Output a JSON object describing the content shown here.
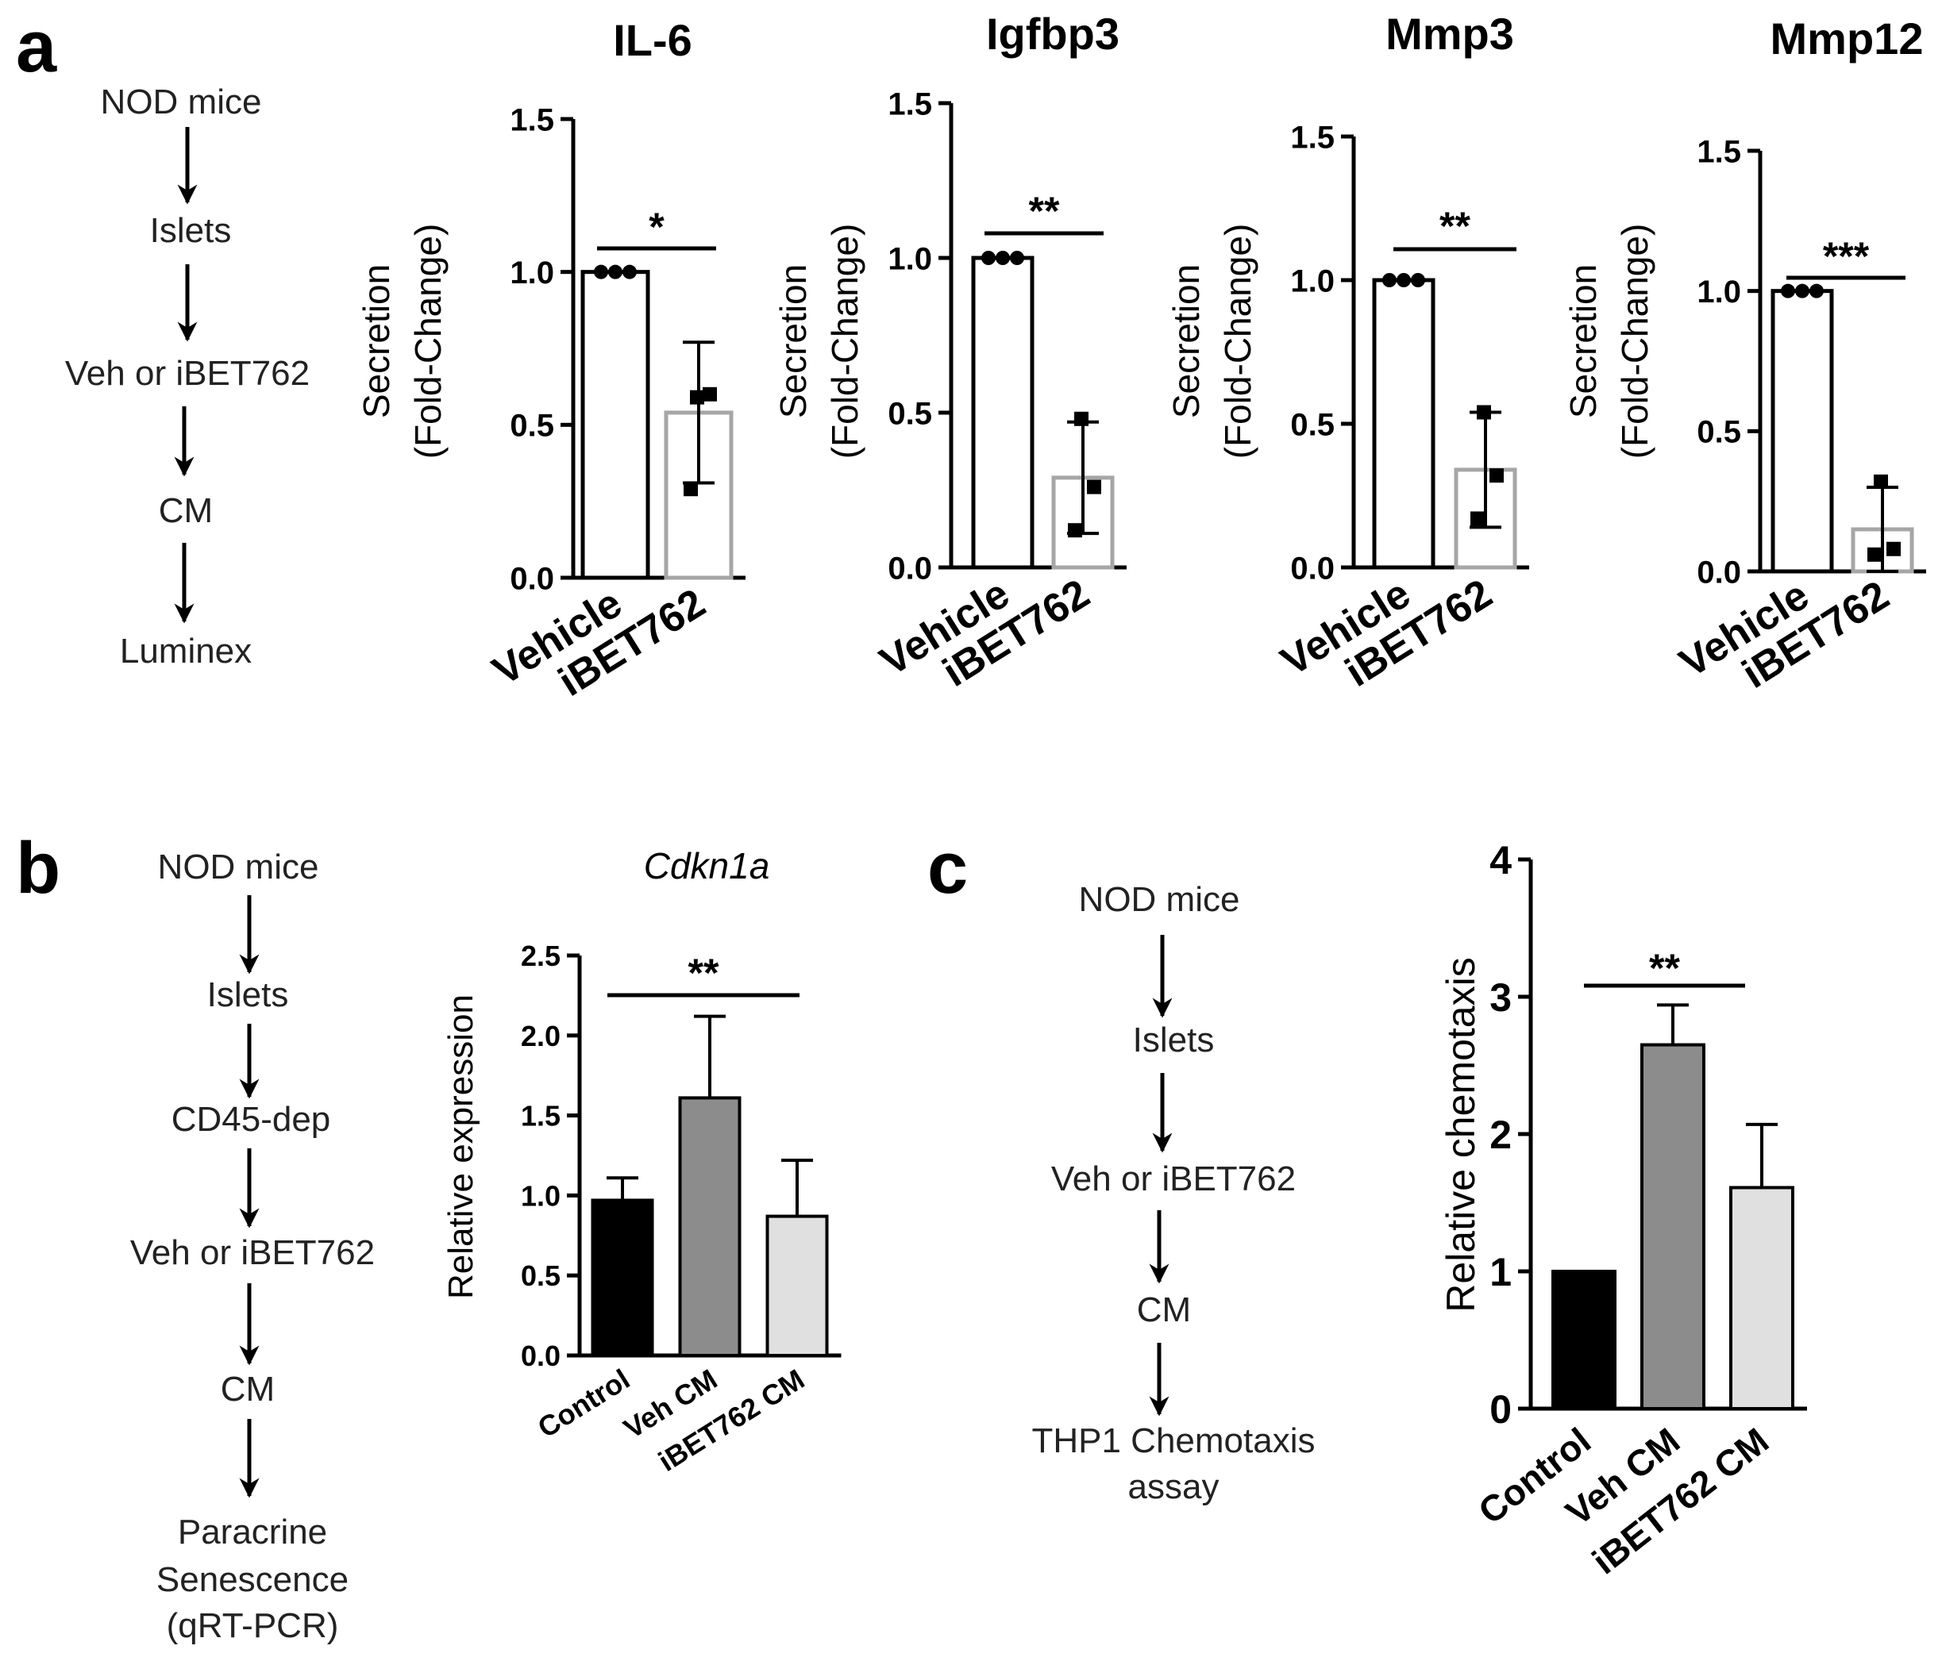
{
  "panels": {
    "a": {
      "letter": "a",
      "flow": [
        "NOD  mice",
        "Islets",
        "Veh or iBET762",
        "CM",
        "Luminex"
      ]
    },
    "b": {
      "letter": "b",
      "flow": [
        "NOD  mice",
        "Islets",
        "CD45-dep",
        "Veh or iBET762",
        "CM",
        "Paracrine",
        "Senescence",
        "(qRT-PCR)"
      ]
    },
    "c": {
      "letter": "c",
      "flow": [
        "NOD  mice",
        "Islets",
        "Veh or iBET762",
        "CM",
        "THP1 Chemotaxis",
        "assay"
      ]
    }
  },
  "chart_data": [
    {
      "panel": "a",
      "type": "bar",
      "title": "IL-6",
      "ylabel": [
        "Secretion",
        "(Fold-Change)"
      ],
      "categories": [
        "Vehicle",
        "iBET762"
      ],
      "values": [
        1.0,
        0.54
      ],
      "error": [
        null,
        0.23
      ],
      "points": [
        [
          1.0,
          1.0,
          1.0
        ],
        [
          0.59,
          0.6,
          0.29
        ]
      ],
      "ylim": [
        0,
        1.5
      ],
      "yticks": [
        "0.0",
        "0.5",
        "1.0",
        "1.5"
      ],
      "significance": "*",
      "bar_fill": [
        "#ffffff",
        "#ffffff"
      ],
      "bar_stroke": [
        "#000000",
        "#a6a6a6"
      ]
    },
    {
      "panel": "a",
      "type": "bar",
      "title": "Igfbp3",
      "ylabel": [
        "Secretion",
        "(Fold-Change)"
      ],
      "categories": [
        "Vehicle",
        "iBET762"
      ],
      "values": [
        1.0,
        0.29
      ],
      "error": [
        null,
        0.18
      ],
      "points": [
        [
          1.0,
          1.0,
          1.0
        ],
        [
          0.48,
          0.26,
          0.12
        ]
      ],
      "ylim": [
        0,
        1.5
      ],
      "yticks": [
        "0.0",
        "0.5",
        "1.0",
        "1.5"
      ],
      "significance": "**",
      "bar_fill": [
        "#ffffff",
        "#ffffff"
      ],
      "bar_stroke": [
        "#000000",
        "#a6a6a6"
      ]
    },
    {
      "panel": "a",
      "type": "bar",
      "title": "Mmp3",
      "ylabel": [
        "Secretion",
        "(Fold-Change)"
      ],
      "categories": [
        "Vehicle",
        "iBET762"
      ],
      "values": [
        1.0,
        0.34
      ],
      "error": [
        null,
        0.2
      ],
      "points": [
        [
          1.0,
          1.0,
          1.0
        ],
        [
          0.54,
          0.32,
          0.17
        ]
      ],
      "ylim": [
        0,
        1.5
      ],
      "yticks": [
        "0.0",
        "0.5",
        "1.0",
        "1.5"
      ],
      "significance": "**",
      "bar_fill": [
        "#ffffff",
        "#ffffff"
      ],
      "bar_stroke": [
        "#000000",
        "#a6a6a6"
      ]
    },
    {
      "panel": "a",
      "type": "bar",
      "title": "Mmp12",
      "ylabel": [
        "Secretion",
        "(Fold-Change)"
      ],
      "categories": [
        "Vehicle",
        "iBET762"
      ],
      "values": [
        1.0,
        0.15
      ],
      "error": [
        null,
        0.15
      ],
      "points": [
        [
          1.0,
          1.0,
          1.0
        ],
        [
          0.32,
          0.08,
          0.06
        ]
      ],
      "ylim": [
        0,
        1.5
      ],
      "yticks": [
        "0.0",
        "0.5",
        "1.0",
        "1.5"
      ],
      "significance": "***",
      "bar_fill": [
        "#ffffff",
        "#ffffff"
      ],
      "bar_stroke": [
        "#000000",
        "#a6a6a6"
      ]
    },
    {
      "panel": "b",
      "type": "bar",
      "title": "Cdkn1a",
      "ylabel": [
        "Relative expression"
      ],
      "categories": [
        "Control",
        "Veh CM",
        "iBET762 CM"
      ],
      "values": [
        0.97,
        1.61,
        0.87
      ],
      "error": [
        0.14,
        0.51,
        0.35
      ],
      "ylim": [
        0,
        2.5
      ],
      "yticks": [
        "0.0",
        "0.5",
        "1.0",
        "1.5",
        "2.0",
        "2.5"
      ],
      "significance": "**",
      "bar_fill": [
        "#000000",
        "#8c8c8c",
        "#e0e0e0"
      ]
    },
    {
      "panel": "c",
      "type": "bar",
      "title": "",
      "ylabel": [
        "Relative chemotaxis"
      ],
      "categories": [
        "Control",
        "Veh CM",
        "iBET762 CM"
      ],
      "values": [
        1.0,
        2.65,
        1.61
      ],
      "error": [
        0.0,
        0.29,
        0.46
      ],
      "ylim": [
        0,
        4
      ],
      "yticks": [
        "0",
        "1",
        "2",
        "3",
        "4"
      ],
      "significance": "**",
      "bar_fill": [
        "#000000",
        "#8c8c8c",
        "#e0e0e0"
      ]
    }
  ]
}
